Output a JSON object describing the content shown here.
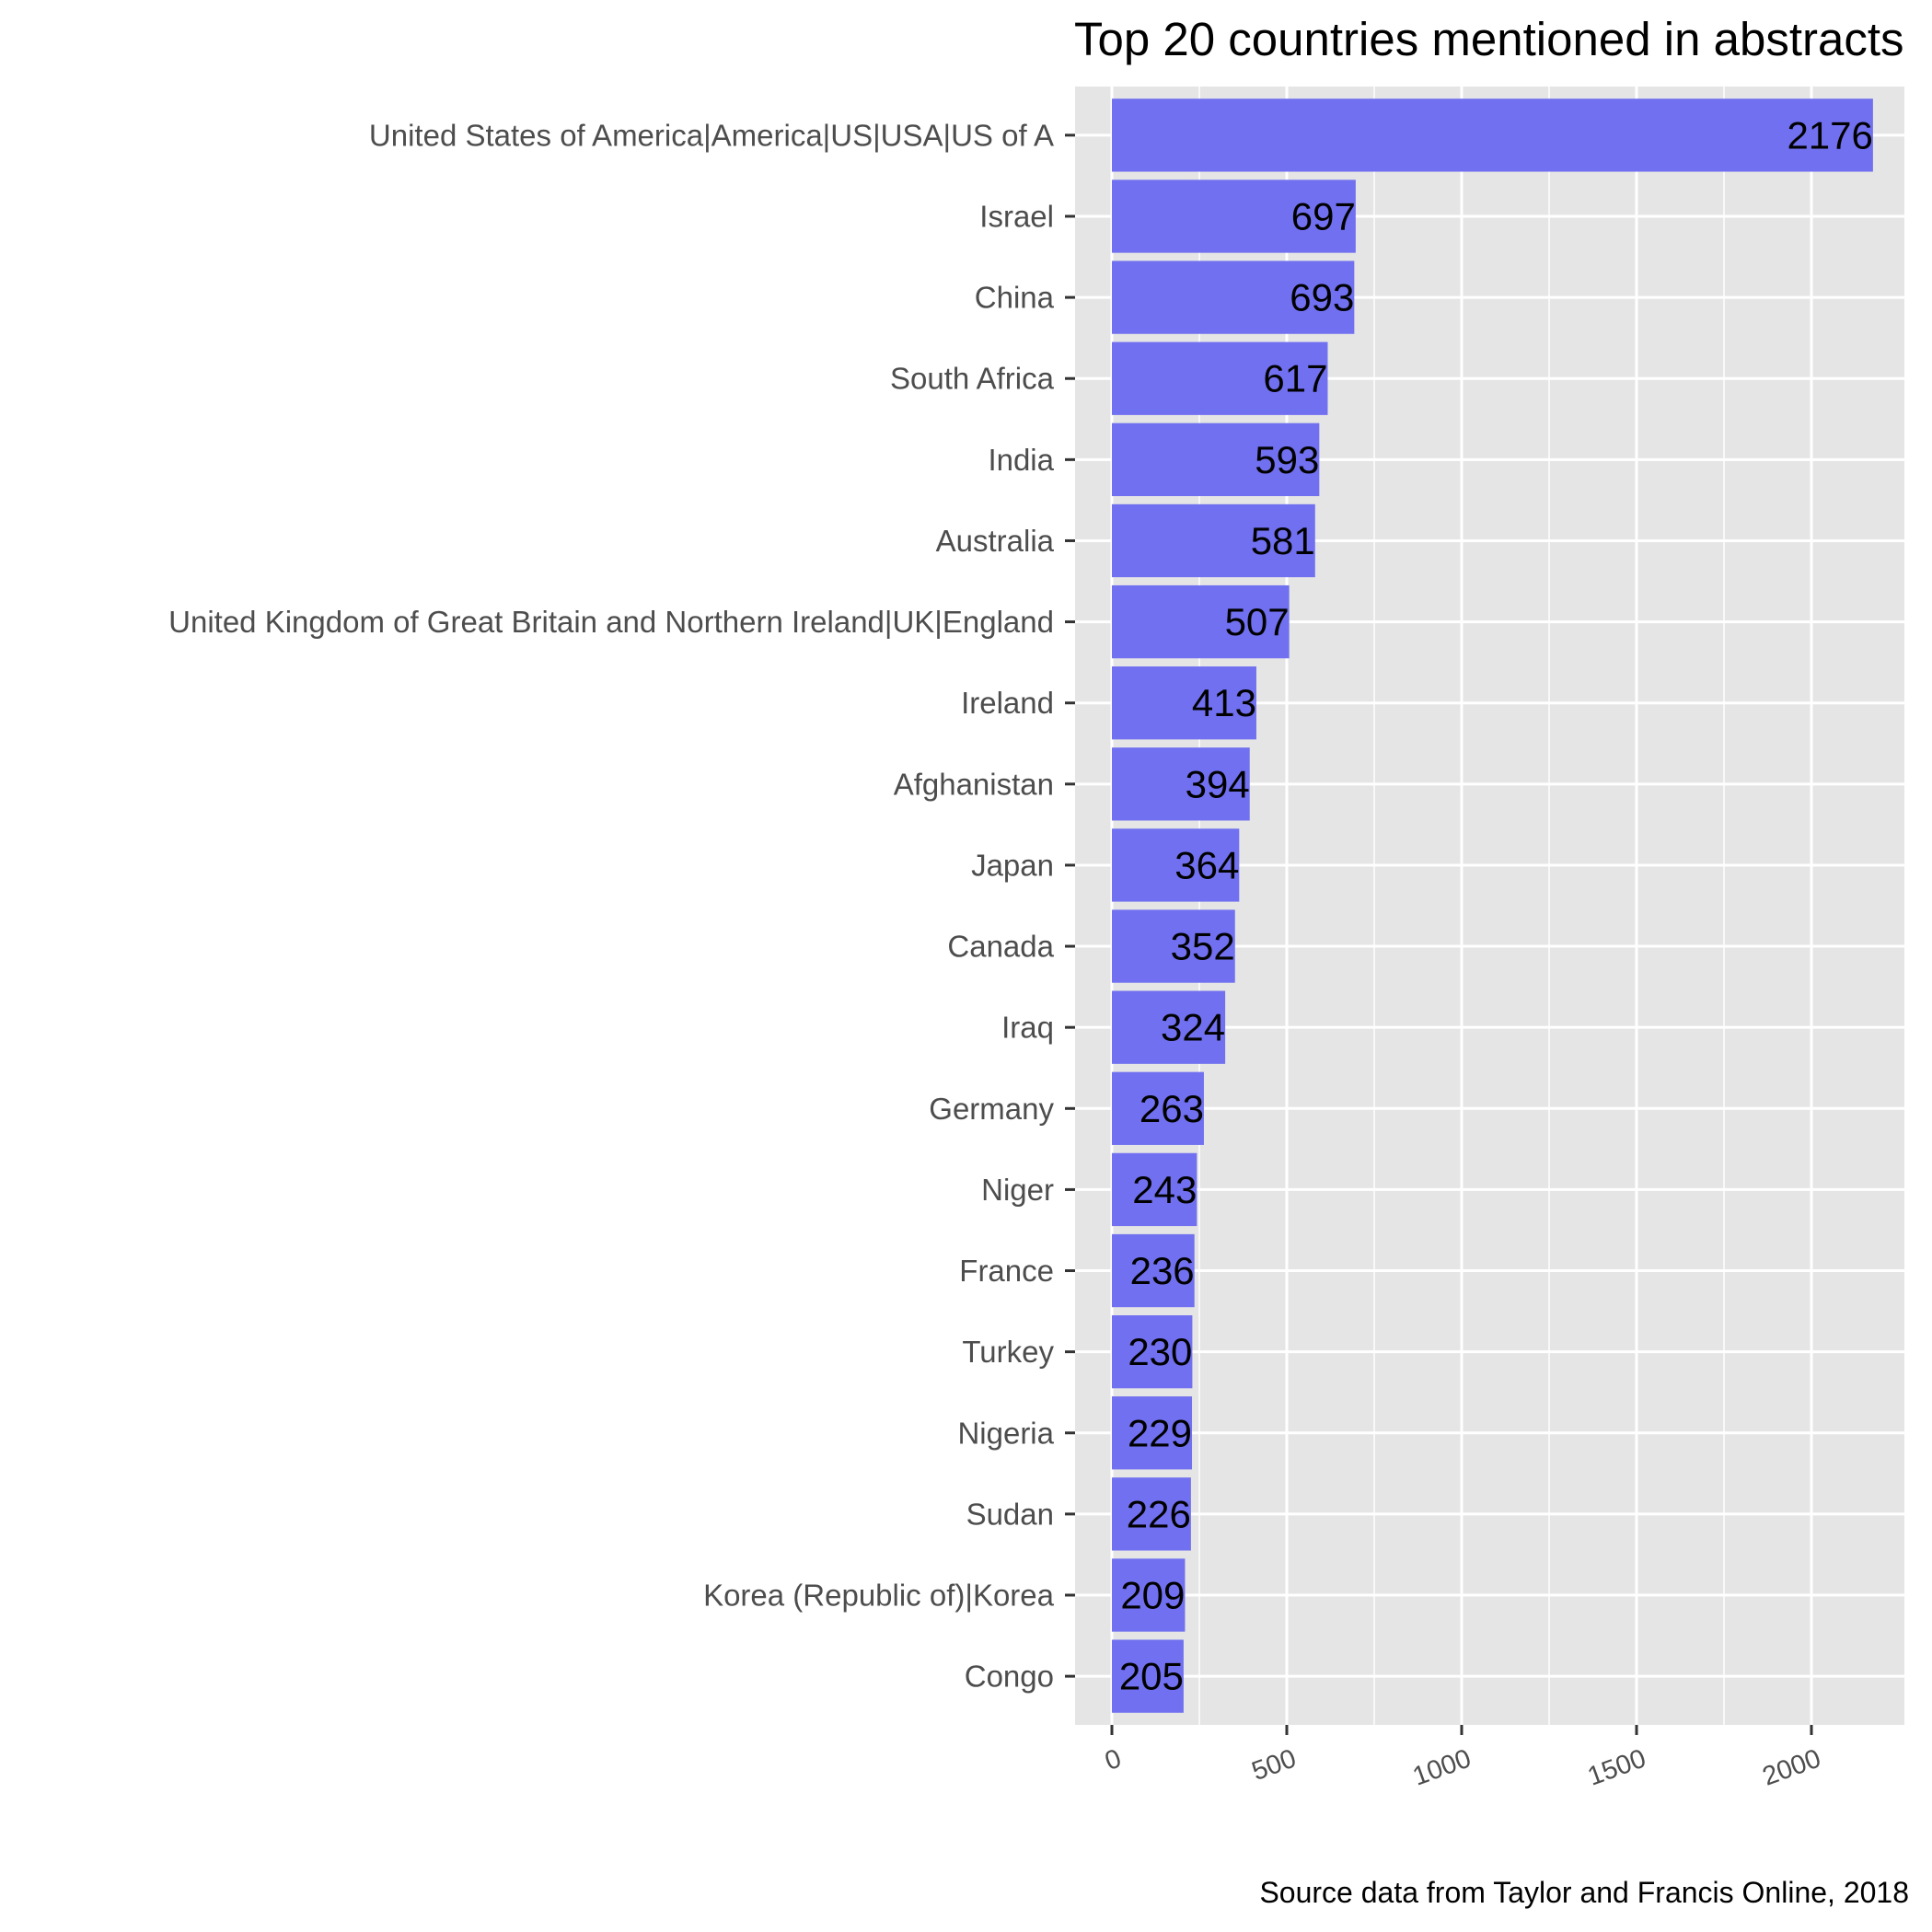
{
  "chart_data": {
    "type": "bar",
    "orientation": "horizontal",
    "title": "Top 20 countries mentioned in abstracts",
    "caption": "Source data from Taylor and Francis Online, 2018",
    "xlabel": "",
    "ylabel": "",
    "categories": [
      "United States of America|America|US|USA|US of A",
      "Israel",
      "China",
      "South Africa",
      "India",
      "Australia",
      "United Kingdom of Great Britain and Northern Ireland|UK|England",
      "Ireland",
      "Afghanistan",
      "Japan",
      "Canada",
      "Iraq",
      "Germany",
      "Niger",
      "France",
      "Turkey",
      "Nigeria",
      "Sudan",
      "Korea (Republic of)|Korea",
      "Congo"
    ],
    "values": [
      2176,
      697,
      693,
      617,
      593,
      581,
      507,
      413,
      394,
      364,
      352,
      324,
      263,
      243,
      236,
      230,
      229,
      226,
      209,
      205
    ],
    "data_labels": [
      "2176",
      "697",
      "693",
      "617",
      "593",
      "581",
      "507",
      "413",
      "394",
      "364",
      "352",
      "324",
      "263",
      "243",
      "236",
      "230",
      "229",
      "226",
      "209",
      "205"
    ],
    "xticks": [
      0,
      500,
      1000,
      1500,
      2000
    ],
    "xtick_labels": [
      "0",
      "500",
      "1000",
      "1500",
      "2000"
    ],
    "xlim": [
      -109,
      2285
    ],
    "grid": true,
    "legend": "none",
    "colors": {
      "bar": "#7070f0",
      "panel": "#e5e5e5",
      "grid": "#ffffff"
    }
  }
}
